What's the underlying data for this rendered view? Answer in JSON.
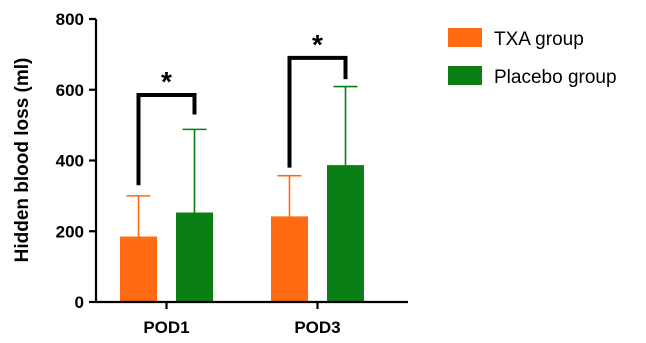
{
  "chart_data": {
    "type": "bar",
    "categories": [
      "POD1",
      "POD3"
    ],
    "ylabel": "Hidden blood loss (ml)",
    "ylim": [
      0,
      800
    ],
    "yticks": [
      0,
      200,
      400,
      600,
      800
    ],
    "grid": false,
    "legend_position": "top-right",
    "series": [
      {
        "name": "TXA group",
        "color": "#ff6a13",
        "values": [
          185,
          242
        ],
        "error_upper": [
          300,
          357
        ]
      },
      {
        "name": "Placebo group",
        "color": "#0a7f16",
        "values": [
          253,
          387
        ],
        "error_upper": [
          488,
          609
        ]
      }
    ],
    "significance": [
      {
        "category": "POD1",
        "label": "*"
      },
      {
        "category": "POD3",
        "label": "*"
      }
    ]
  }
}
